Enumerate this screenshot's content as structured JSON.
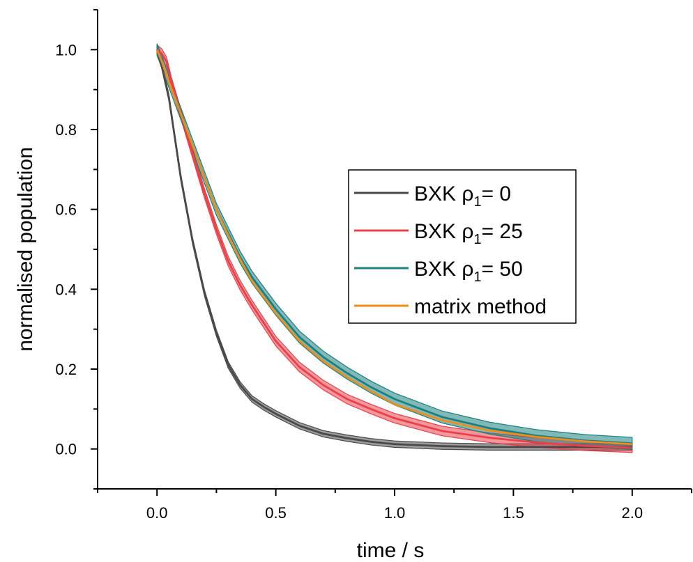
{
  "chart_data": {
    "type": "line",
    "xlabel": "time / s",
    "ylabel": "normalised population",
    "xlim": [
      -0.25,
      2.25
    ],
    "ylim": [
      -0.1,
      1.1
    ],
    "x_ticks": [
      "0.0",
      "0.5",
      "1.0",
      "1.5",
      "2.0"
    ],
    "y_ticks": [
      "0.0",
      "0.2",
      "0.4",
      "0.6",
      "0.8",
      "1.0"
    ],
    "grid": false,
    "legend_position": "center-right",
    "series": [
      {
        "legend_prefix": "BXK ρ",
        "legend_sub": "1",
        "legend_suffix": "= 0",
        "color": "#4a4a4a",
        "band": 0.008,
        "x": [
          0.0,
          0.02,
          0.05,
          0.1,
          0.15,
          0.2,
          0.25,
          0.3,
          0.35,
          0.4,
          0.45,
          0.5,
          0.6,
          0.7,
          0.8,
          0.9,
          1.0,
          1.2,
          1.4,
          1.6,
          1.8,
          2.0
        ],
        "y": [
          1.0,
          0.96,
          0.88,
          0.68,
          0.52,
          0.39,
          0.29,
          0.21,
          0.16,
          0.125,
          0.105,
          0.088,
          0.058,
          0.038,
          0.027,
          0.018,
          0.012,
          0.007,
          0.005,
          0.005,
          0.005,
          0.005
        ]
      },
      {
        "legend_prefix": "BXK ρ",
        "legend_sub": "1",
        "legend_suffix": "= 25",
        "color": "#e8414a",
        "band": 0.012,
        "x": [
          0.0,
          0.02,
          0.04,
          0.06,
          0.1,
          0.15,
          0.2,
          0.25,
          0.3,
          0.35,
          0.4,
          0.5,
          0.6,
          0.7,
          0.8,
          0.9,
          1.0,
          1.2,
          1.4,
          1.6,
          1.8,
          2.0
        ],
        "y": [
          1.0,
          0.99,
          0.97,
          0.92,
          0.84,
          0.74,
          0.64,
          0.55,
          0.47,
          0.41,
          0.36,
          0.27,
          0.205,
          0.16,
          0.125,
          0.1,
          0.077,
          0.045,
          0.028,
          0.016,
          0.008,
          0.003
        ]
      },
      {
        "legend_prefix": "BXK ρ",
        "legend_sub": "1",
        "legend_suffix": "= 50",
        "color": "#1a8080",
        "band": 0.015,
        "x": [
          0.0,
          0.02,
          0.05,
          0.1,
          0.15,
          0.2,
          0.25,
          0.3,
          0.35,
          0.4,
          0.5,
          0.6,
          0.7,
          0.8,
          0.9,
          1.0,
          1.2,
          1.4,
          1.6,
          1.8,
          2.0
        ],
        "y": [
          1.0,
          0.97,
          0.92,
          0.84,
          0.76,
          0.68,
          0.6,
          0.54,
          0.48,
          0.43,
          0.35,
          0.28,
          0.23,
          0.19,
          0.155,
          0.125,
          0.08,
          0.052,
          0.033,
          0.021,
          0.014
        ]
      },
      {
        "legend_text": "matrix method",
        "color": "#f08c1a",
        "band": 0,
        "x": [
          0.0,
          0.02,
          0.05,
          0.1,
          0.15,
          0.2,
          0.25,
          0.3,
          0.35,
          0.4,
          0.5,
          0.6,
          0.7,
          0.8,
          0.9,
          1.0,
          1.2,
          1.4,
          1.6,
          1.8,
          2.0
        ],
        "y": [
          1.0,
          0.97,
          0.92,
          0.84,
          0.76,
          0.68,
          0.6,
          0.535,
          0.475,
          0.42,
          0.34,
          0.27,
          0.22,
          0.18,
          0.145,
          0.112,
          0.072,
          0.046,
          0.03,
          0.019,
          0.012
        ]
      }
    ]
  }
}
